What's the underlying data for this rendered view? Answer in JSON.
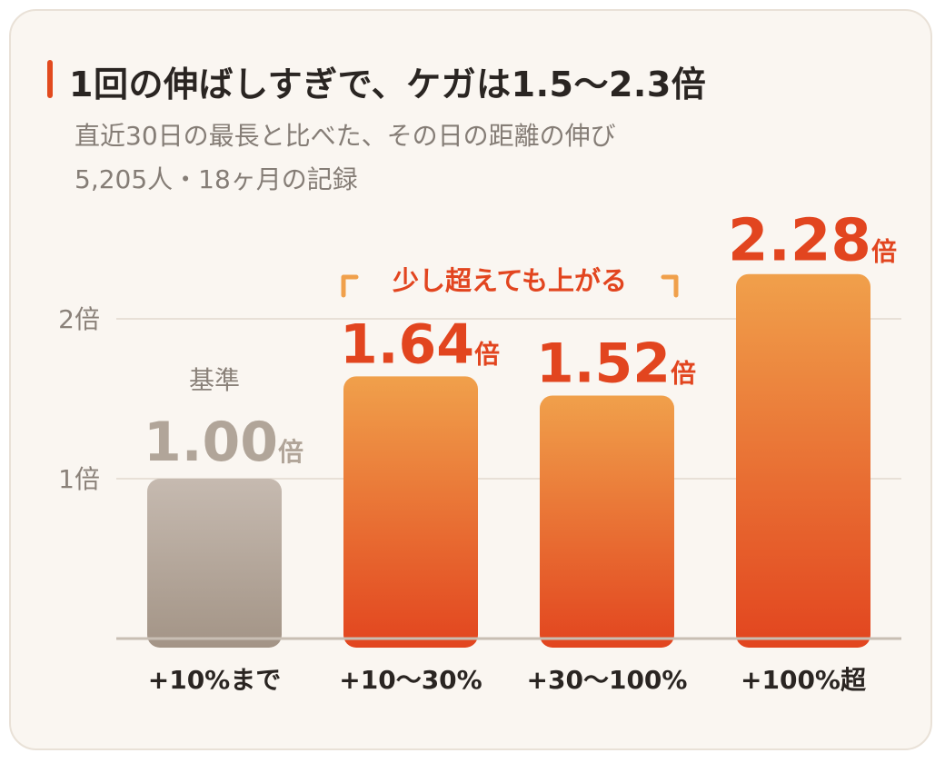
{
  "title": "1回の伸ばしすぎで、ケガは1.5〜2.3倍",
  "subtitle_lines": [
    "直近30日の最長と比べた、その日の距離の伸び",
    "5,205人・18ヶ月の記録"
  ],
  "colors": {
    "baseline_top": "#c6bab0",
    "baseline_bottom": "#a39486",
    "bar_top": "#f0a04b",
    "bar_bottom": "#e2451f",
    "accent": "#e2451f",
    "baseline_label": "#b1a599",
    "grid": "#e8e0d7",
    "axis": "#c8beb3",
    "text_dark": "#2a2522",
    "text_muted": "#8a8179"
  },
  "chart_data": {
    "type": "bar",
    "categories": [
      "+10%まで",
      "+10〜30%",
      "+30〜100%",
      "+100%超"
    ],
    "values": [
      1.0,
      1.64,
      1.52,
      2.28
    ],
    "value_labels": [
      "1.00",
      "1.64",
      "1.52",
      "2.28"
    ],
    "unit": "倍",
    "baseline_note": "基準",
    "yticks": [
      {
        "value": 1,
        "label": "1倍"
      },
      {
        "value": 2,
        "label": "2倍"
      }
    ],
    "ylim": [
      0,
      2.3
    ],
    "grid": true,
    "annotation": {
      "text": "少し超えても上がる",
      "spans": [
        "+10〜30%",
        "+30〜100%"
      ]
    }
  }
}
